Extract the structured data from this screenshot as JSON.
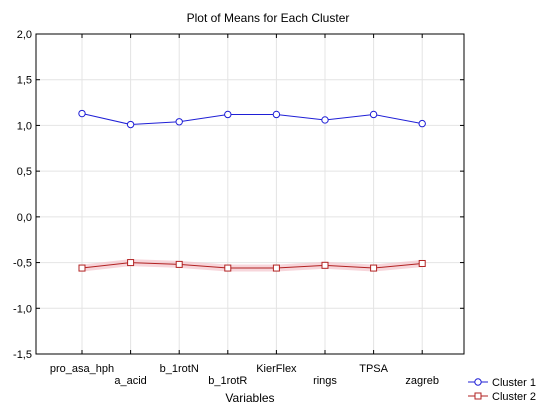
{
  "chart_data": {
    "type": "line",
    "title": "Plot of Means for Each Cluster",
    "xlabel": "Variables",
    "ylabel": "",
    "categories": [
      "pro_asa_hph",
      "a_acid",
      "b_1rotN",
      "b_1rotR",
      "KierFlex",
      "rings",
      "TPSA",
      "zagreb"
    ],
    "ylim": [
      -1.5,
      2.0
    ],
    "yticks": [
      "2,0",
      "1,5",
      "1,0",
      "0,5",
      "0,0",
      "-0,5",
      "-1,0",
      "-1,5"
    ],
    "ytick_values": [
      2.0,
      1.5,
      1.0,
      0.5,
      0.0,
      -0.5,
      -1.0,
      -1.5
    ],
    "grid": true,
    "legend_position": "bottom-right",
    "series": [
      {
        "name": "Cluster  1",
        "marker": "circle",
        "color": "#1f1fd6",
        "values": [
          1.13,
          1.01,
          1.04,
          1.12,
          1.12,
          1.06,
          1.12,
          1.02
        ]
      },
      {
        "name": "Cluster  2",
        "marker": "square",
        "color": "#b22222",
        "values": [
          -0.56,
          -0.5,
          -0.52,
          -0.56,
          -0.56,
          -0.53,
          -0.56,
          -0.51
        ]
      }
    ]
  }
}
